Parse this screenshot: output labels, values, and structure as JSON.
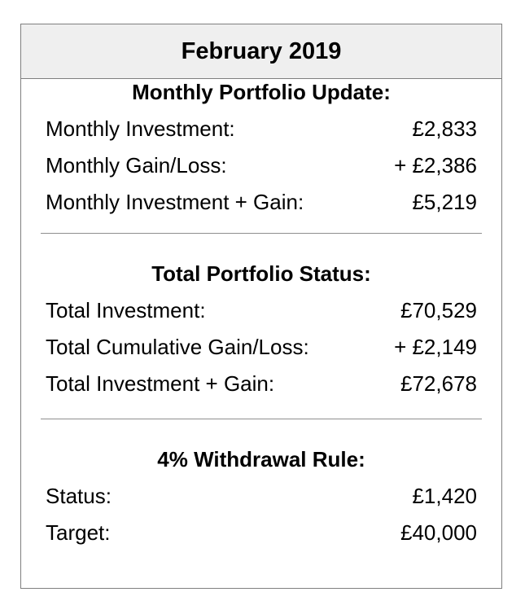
{
  "title": "February 2019",
  "sections": [
    {
      "title": "Monthly Portfolio Update:",
      "rows": [
        {
          "label": "Monthly Investment:",
          "value": "£2,833"
        },
        {
          "label": "Monthly Gain/Loss:",
          "value": "+ £2,386"
        },
        {
          "label": "Monthly Investment + Gain:",
          "value": "£5,219"
        }
      ]
    },
    {
      "title": "Total Portfolio Status:",
      "rows": [
        {
          "label": "Total Investment:",
          "value": "£70,529"
        },
        {
          "label": "Total Cumulative Gain/Loss:",
          "value": "+ £2,149"
        },
        {
          "label": "Total Investment + Gain:",
          "value": "£72,678"
        }
      ]
    },
    {
      "title": "4% Withdrawal Rule:",
      "rows": [
        {
          "label": "Status:",
          "value": "£1,420"
        },
        {
          "label": "Target:",
          "value": "£40,000"
        }
      ]
    }
  ]
}
